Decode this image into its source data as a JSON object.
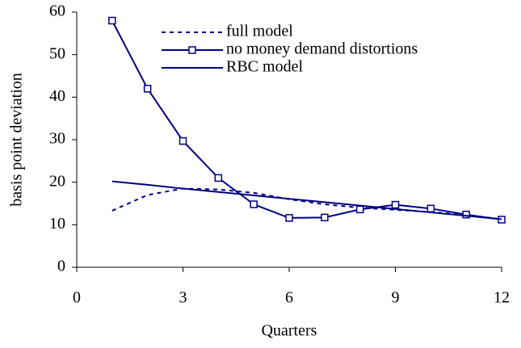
{
  "chart_data": {
    "type": "line",
    "x_label": "Quarters",
    "y_label": "basis point deviation",
    "x": [
      1,
      2,
      3,
      4,
      5,
      6,
      7,
      8,
      9,
      10,
      11,
      12
    ],
    "series": [
      {
        "name": "full model",
        "color": "#000080",
        "dash": "dashed",
        "marker": "none",
        "values": [
          13.3,
          17,
          18.5,
          18.3,
          17.5,
          16,
          14.8,
          14,
          13.5,
          13,
          12.3,
          11.3
        ]
      },
      {
        "name": "no money demand distortions",
        "color": "#000080",
        "dash": "solid",
        "marker": "square",
        "values": [
          58,
          42,
          29.7,
          21,
          14.8,
          11.6,
          11.7,
          13.6,
          14.7,
          13.8,
          12.4,
          11.2
        ]
      },
      {
        "name": "RBC model",
        "color": "#000080",
        "dash": "solid",
        "marker": "none",
        "values": [
          20.2,
          19.4,
          18.5,
          17.7,
          16.9,
          16.1,
          15.3,
          14.5,
          13.7,
          12.9,
          12.1,
          11.3
        ]
      }
    ],
    "xlim": [
      0,
      12
    ],
    "xticks": [
      0,
      3,
      6,
      9,
      12
    ],
    "ylim": [
      0,
      60
    ],
    "yticks": [
      0,
      10,
      20,
      30,
      40,
      50,
      60
    ],
    "legend": "top"
  }
}
